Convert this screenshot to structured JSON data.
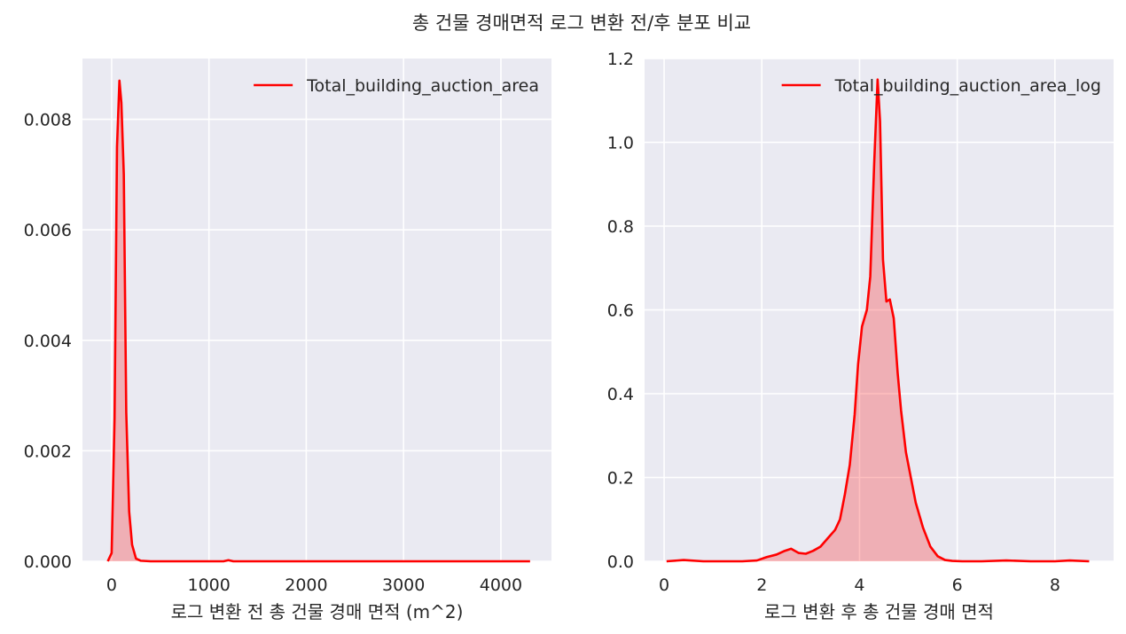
{
  "figure": {
    "title": "총 건물 경매면적 로그 변환 전/후 분포 비교"
  },
  "chart_data": [
    {
      "type": "area",
      "xlabel": "로그 변환 전 총 건물 경매 면적 (m^2)",
      "ylabel": "",
      "xlim": [
        -300,
        4520
      ],
      "ylim": [
        0,
        0.0091
      ],
      "xticks": [
        0,
        1000,
        2000,
        3000,
        4000
      ],
      "xtick_labels": [
        "0",
        "1000",
        "2000",
        "3000",
        "4000"
      ],
      "yticks": [
        0,
        0.002,
        0.004,
        0.006,
        0.008
      ],
      "ytick_labels": [
        "0.000",
        "0.002",
        "0.004",
        "0.006",
        "0.008"
      ],
      "grid": true,
      "legend_position": "top-right",
      "series": [
        {
          "name": "Total_building_auction_area",
          "color": "#ff0000",
          "fill": true,
          "x": [
            -40,
            0,
            30,
            55,
            80,
            100,
            125,
            150,
            180,
            210,
            250,
            300,
            400,
            600,
            1000,
            1150,
            1200,
            1250,
            1400,
            2000,
            3000,
            4000,
            4200,
            4300
          ],
          "y": [
            0,
            0.00015,
            0.0026,
            0.0075,
            0.0087,
            0.0083,
            0.007,
            0.0027,
            0.0009,
            0.0003,
            5e-05,
            1e-05,
            0,
            0,
            0,
            0,
            2e-05,
            0,
            0,
            0,
            0,
            0,
            0,
            0
          ]
        }
      ]
    },
    {
      "type": "area",
      "xlabel": "로그 변환 후 총 건물 경매 면적",
      "ylabel": "",
      "xlim": [
        -0.4,
        9.2
      ],
      "ylim": [
        0,
        1.2
      ],
      "xticks": [
        0,
        2,
        4,
        6,
        8
      ],
      "xtick_labels": [
        "0",
        "2",
        "4",
        "6",
        "8"
      ],
      "yticks": [
        0,
        0.2,
        0.4,
        0.6,
        0.8,
        1.0,
        1.2
      ],
      "ytick_labels": [
        "0.0",
        "0.2",
        "0.4",
        "0.6",
        "0.8",
        "1.0",
        "1.2"
      ],
      "grid": true,
      "legend_position": "top-right",
      "series": [
        {
          "name": "Total_building_auction_area_log",
          "color": "#ff0000",
          "fill": true,
          "x": [
            0.05,
            0.4,
            0.8,
            1.2,
            1.6,
            1.9,
            2.1,
            2.3,
            2.45,
            2.6,
            2.75,
            2.9,
            3.05,
            3.2,
            3.35,
            3.5,
            3.6,
            3.7,
            3.8,
            3.9,
            3.97,
            4.05,
            4.15,
            4.22,
            4.3,
            4.37,
            4.42,
            4.48,
            4.55,
            4.62,
            4.7,
            4.78,
            4.85,
            4.95,
            5.05,
            5.15,
            5.3,
            5.45,
            5.6,
            5.75,
            5.9,
            6.1,
            6.5,
            7.0,
            7.5,
            8.0,
            8.3,
            8.7
          ],
          "y": [
            0,
            0.003,
            0,
            0,
            0,
            0.002,
            0.01,
            0.016,
            0.024,
            0.03,
            0.02,
            0.018,
            0.025,
            0.035,
            0.055,
            0.075,
            0.1,
            0.16,
            0.23,
            0.35,
            0.47,
            0.56,
            0.6,
            0.68,
            0.95,
            1.15,
            1.05,
            0.72,
            0.62,
            0.625,
            0.58,
            0.45,
            0.36,
            0.26,
            0.2,
            0.14,
            0.08,
            0.035,
            0.012,
            0.003,
            0.001,
            0,
            0,
            0.002,
            0,
            0,
            0.002,
            0
          ]
        }
      ]
    }
  ]
}
